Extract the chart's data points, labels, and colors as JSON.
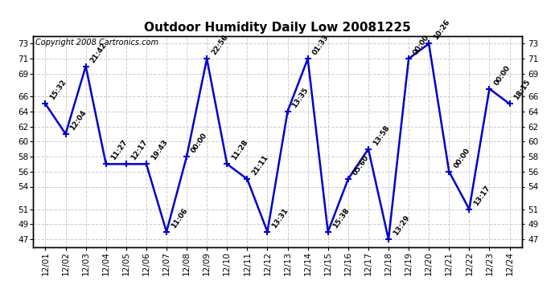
{
  "title": "Outdoor Humidity Daily Low 20081225",
  "copyright": "Copyright 2008 Cartronics.com",
  "x_labels": [
    "12/01",
    "12/02",
    "12/03",
    "12/04",
    "12/05",
    "12/06",
    "12/07",
    "12/08",
    "12/09",
    "12/10",
    "12/11",
    "12/12",
    "12/13",
    "12/14",
    "12/15",
    "12/16",
    "12/17",
    "12/18",
    "12/19",
    "12/20",
    "12/21",
    "12/22",
    "12/23",
    "12/24"
  ],
  "y_values": [
    65,
    61,
    70,
    57,
    57,
    57,
    48,
    58,
    71,
    57,
    55,
    48,
    64,
    71,
    48,
    55,
    59,
    47,
    71,
    73,
    56,
    51,
    67,
    65
  ],
  "annotations": [
    "15:32",
    "12:04",
    "21:42",
    "11:27",
    "12:17",
    "19:43",
    "11:06",
    "00:00",
    "22:56",
    "11:28",
    "21:11",
    "13:31",
    "13:35",
    "01:33",
    "15:38",
    "05:60",
    "13:58",
    "13:29",
    "00:00",
    "10:26",
    "00:00",
    "13:17",
    "00:00",
    "18:15"
  ],
  "line_color": "#0000cc",
  "marker": "+",
  "marker_size": 6,
  "marker_linewidth": 1.5,
  "line_width": 1.8,
  "ylim": [
    46,
    74
  ],
  "yticks": [
    47,
    49,
    51,
    54,
    56,
    58,
    60,
    62,
    64,
    66,
    69,
    71,
    73
  ],
  "grid_color": "#cccccc",
  "grid_linestyle": "--",
  "bg_color": "#ffffff",
  "annotation_fontsize": 6.5,
  "annotation_color": "#000000",
  "title_fontsize": 11,
  "copyright_fontsize": 7,
  "tick_fontsize": 7.5
}
